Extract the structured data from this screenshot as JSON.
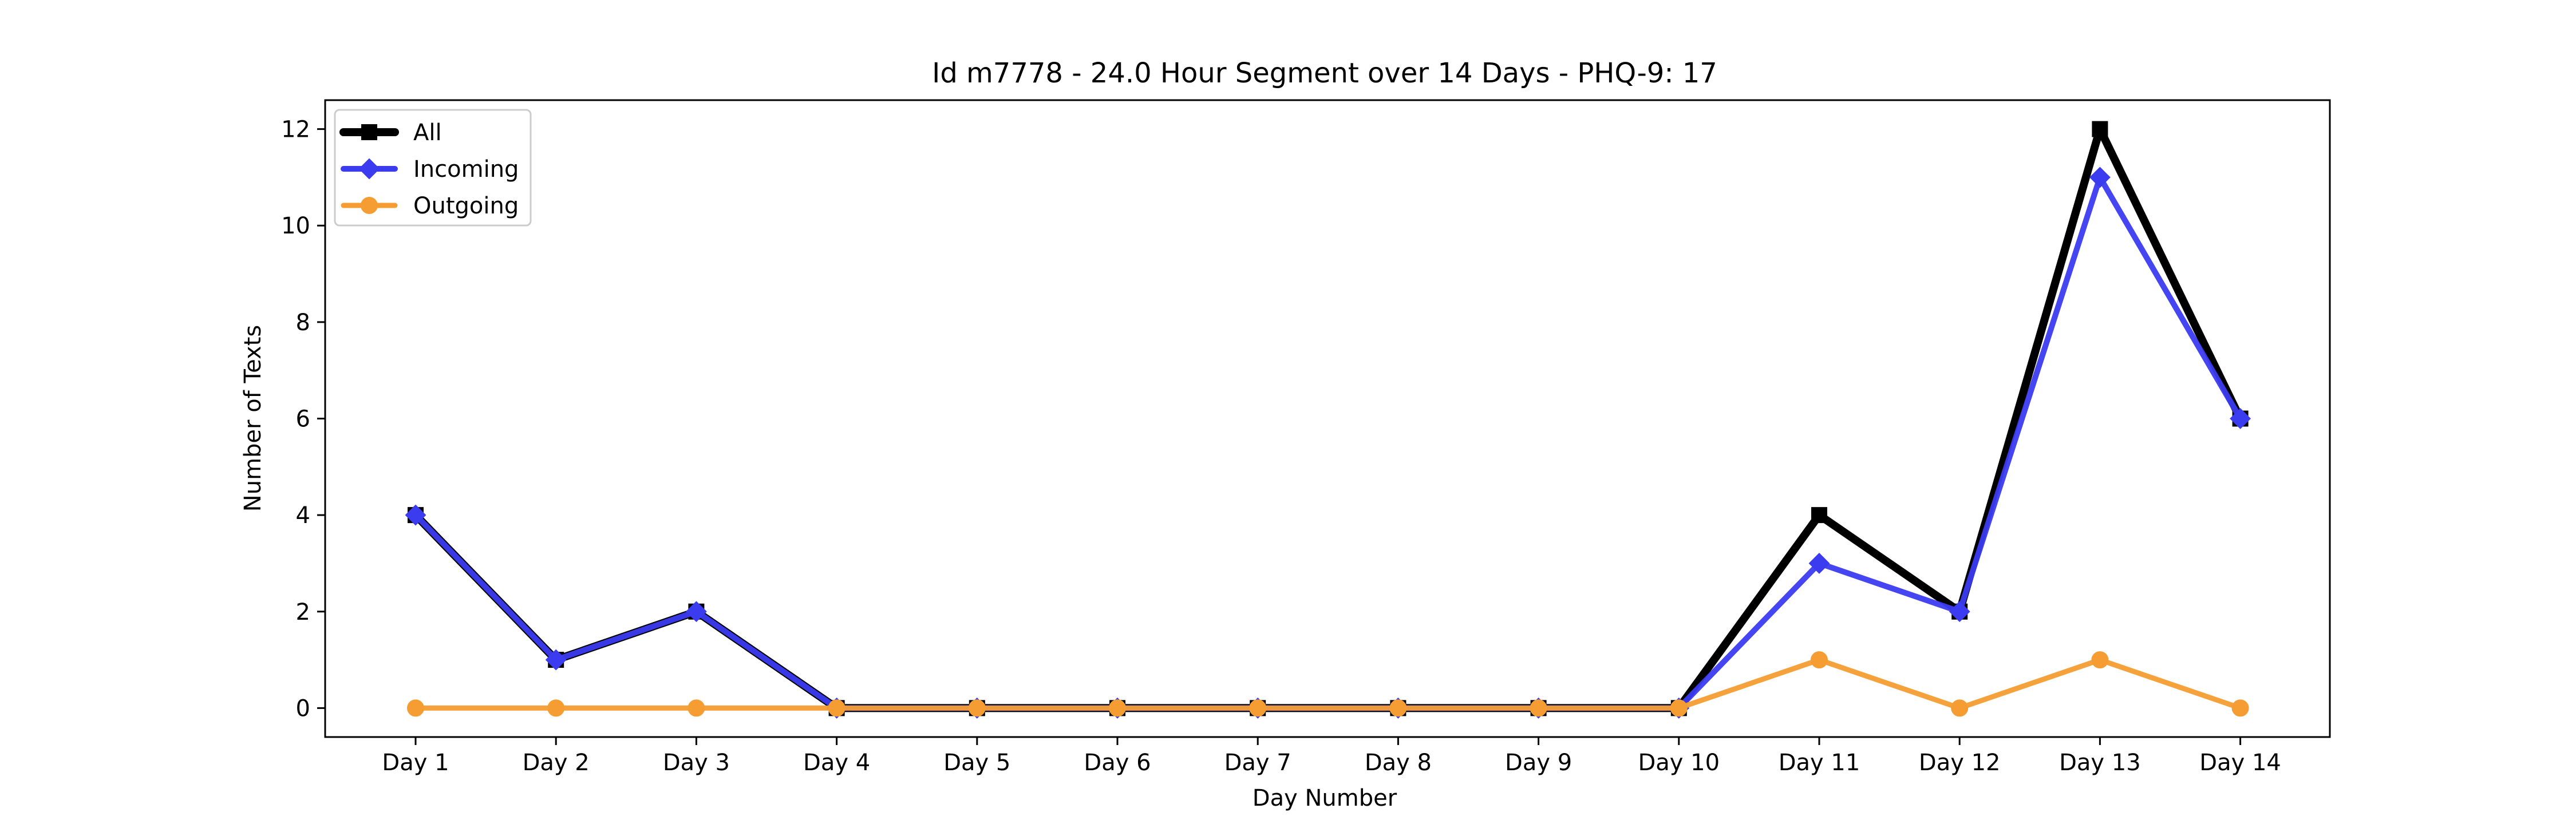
{
  "colors": {
    "all": "#000000",
    "incoming": "#3b3bf0",
    "outgoing": "#f59d32",
    "axes": "#000000",
    "background": "#ffffff"
  },
  "chart_data": {
    "type": "line",
    "title": "Id m7778 - 24.0 Hour Segment over 14 Days - PHQ-9: 17",
    "xlabel": "Day Number",
    "ylabel": "Number of Texts",
    "categories": [
      "Day 1",
      "Day 2",
      "Day 3",
      "Day 4",
      "Day 5",
      "Day 6",
      "Day 7",
      "Day 8",
      "Day 9",
      "Day 10",
      "Day 11",
      "Day 12",
      "Day 13",
      "Day 14"
    ],
    "yticks": [
      0,
      2,
      4,
      6,
      8,
      10,
      12
    ],
    "ylim": [
      -0.6,
      12.6
    ],
    "grid": false,
    "legend_position": "top-left",
    "series": [
      {
        "name": "All",
        "marker": "square",
        "color": "#000000",
        "values": [
          4,
          1,
          2,
          0,
          0,
          0,
          0,
          0,
          0,
          0,
          4,
          2,
          12,
          6
        ]
      },
      {
        "name": "Incoming",
        "marker": "diamond",
        "color": "#3b3bf0",
        "values": [
          4,
          1,
          2,
          0,
          0,
          0,
          0,
          0,
          0,
          0,
          3,
          2,
          11,
          6
        ]
      },
      {
        "name": "Outgoing",
        "marker": "circle",
        "color": "#f59d32",
        "values": [
          0,
          0,
          0,
          0,
          0,
          0,
          0,
          0,
          0,
          0,
          1,
          0,
          1,
          0
        ]
      }
    ]
  }
}
